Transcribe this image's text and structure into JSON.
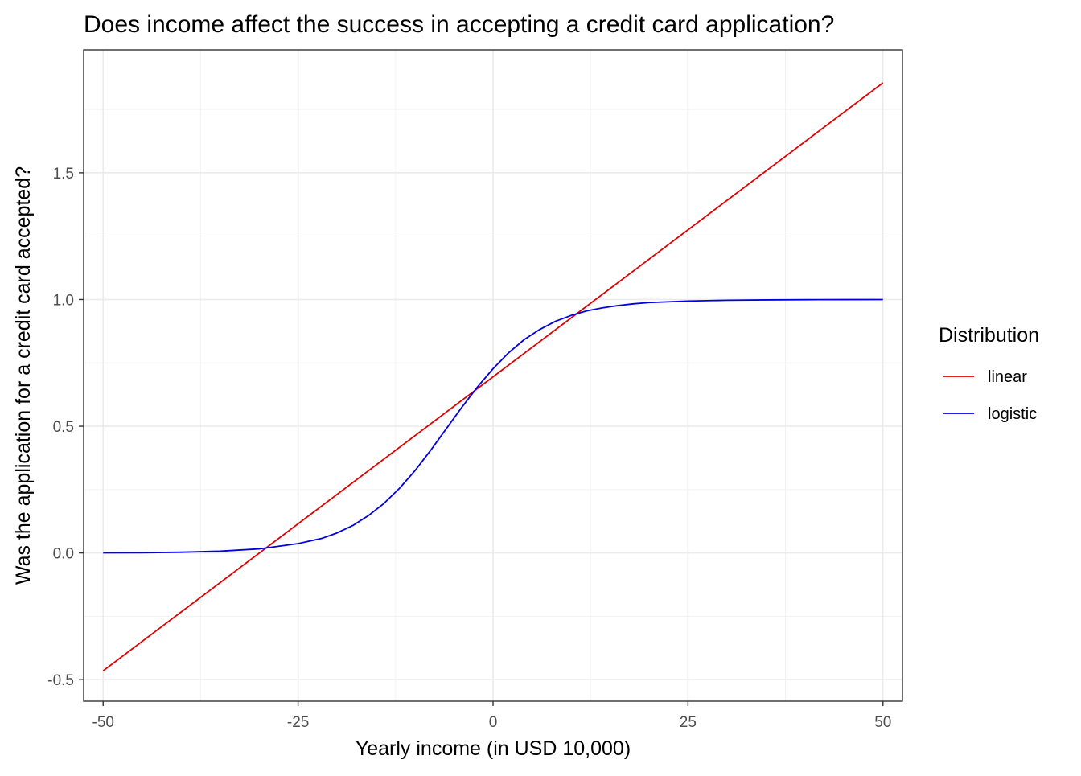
{
  "chart_data": {
    "type": "line",
    "title": "Does income affect the success in accepting a credit card application?",
    "xlabel": "Yearly income (in USD 10,000)",
    "ylabel": "Was the application for a credit card accepted?",
    "xlim": [
      -52.5,
      52.5
    ],
    "ylim": [
      -0.585,
      1.985
    ],
    "x_ticks": [
      -50,
      -25,
      0,
      25,
      50
    ],
    "x_tick_labels": [
      "-50",
      "-25",
      "0",
      "25",
      "50"
    ],
    "y_ticks": [
      -0.5,
      0.0,
      0.5,
      1.0,
      1.5
    ],
    "y_tick_labels": [
      "-0.5",
      "0.0",
      "0.5",
      "1.0",
      "1.5"
    ],
    "grid": true,
    "legend": {
      "title": "Distribution",
      "position": "right",
      "entries": [
        {
          "label": "linear",
          "color": "#e00000"
        },
        {
          "label": "logistic",
          "color": "#0000e0"
        }
      ]
    },
    "series": [
      {
        "name": "linear",
        "color": "#e00000",
        "x": [
          -50,
          50
        ],
        "y": [
          -0.465,
          1.855
        ]
      },
      {
        "name": "logistic",
        "color": "#0000e0",
        "x": [
          -50,
          -45,
          -40,
          -35,
          -30,
          -25,
          -22,
          -20,
          -18,
          -16,
          -14,
          -12,
          -10,
          -8,
          -6,
          -4,
          -2,
          0,
          2,
          4,
          6,
          8,
          10,
          12,
          14,
          16,
          18,
          20,
          25,
          30,
          35,
          40,
          45,
          50
        ],
        "y": [
          0.0005,
          0.001,
          0.003,
          0.007,
          0.016,
          0.037,
          0.057,
          0.079,
          0.108,
          0.147,
          0.195,
          0.255,
          0.325,
          0.405,
          0.49,
          0.575,
          0.655,
          0.727,
          0.79,
          0.842,
          0.882,
          0.914,
          0.937,
          0.955,
          0.967,
          0.976,
          0.983,
          0.988,
          0.994,
          0.997,
          0.9985,
          0.9993,
          0.9997,
          0.9999
        ]
      }
    ]
  }
}
